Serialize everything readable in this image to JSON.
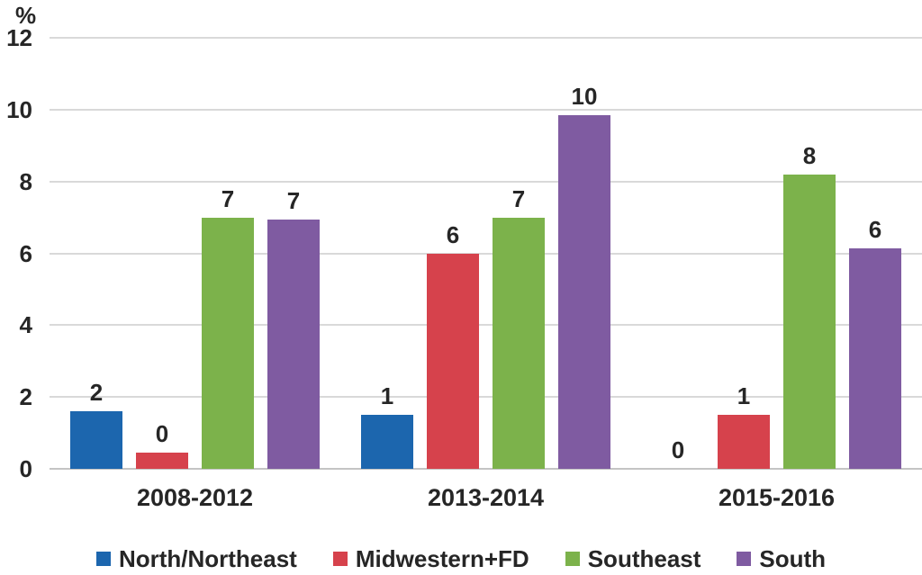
{
  "chart_data": {
    "type": "bar",
    "title": "",
    "xlabel": "",
    "ylabel": "%",
    "ylim": [
      0,
      12
    ],
    "yticks": [
      0,
      2,
      4,
      6,
      8,
      10,
      12
    ],
    "grid": true,
    "legend_position": "bottom",
    "categories": [
      "2008-2012",
      "2013-2014",
      "2015-2016"
    ],
    "series": [
      {
        "name": "North/Northeast",
        "color": "#1c66ae",
        "values": [
          1.6,
          1.5,
          0
        ],
        "bar_labels": [
          "2",
          "1",
          "0"
        ]
      },
      {
        "name": "Midwestern+FD",
        "color": "#d6424c",
        "values": [
          0.45,
          6.0,
          1.5
        ],
        "bar_labels": [
          "0",
          "6",
          "1"
        ]
      },
      {
        "name": "Southeast",
        "color": "#7cb24b",
        "values": [
          7.0,
          7.0,
          8.2
        ],
        "bar_labels": [
          "7",
          "7",
          "8"
        ]
      },
      {
        "name": "South",
        "color": "#7f5ba1",
        "values": [
          6.95,
          9.85,
          6.15
        ],
        "bar_labels": [
          "7",
          "10",
          "6"
        ]
      }
    ],
    "colors": {
      "gridline": "#d9d9d9",
      "baseline": "#c4c4c4",
      "text": "#262626"
    }
  }
}
